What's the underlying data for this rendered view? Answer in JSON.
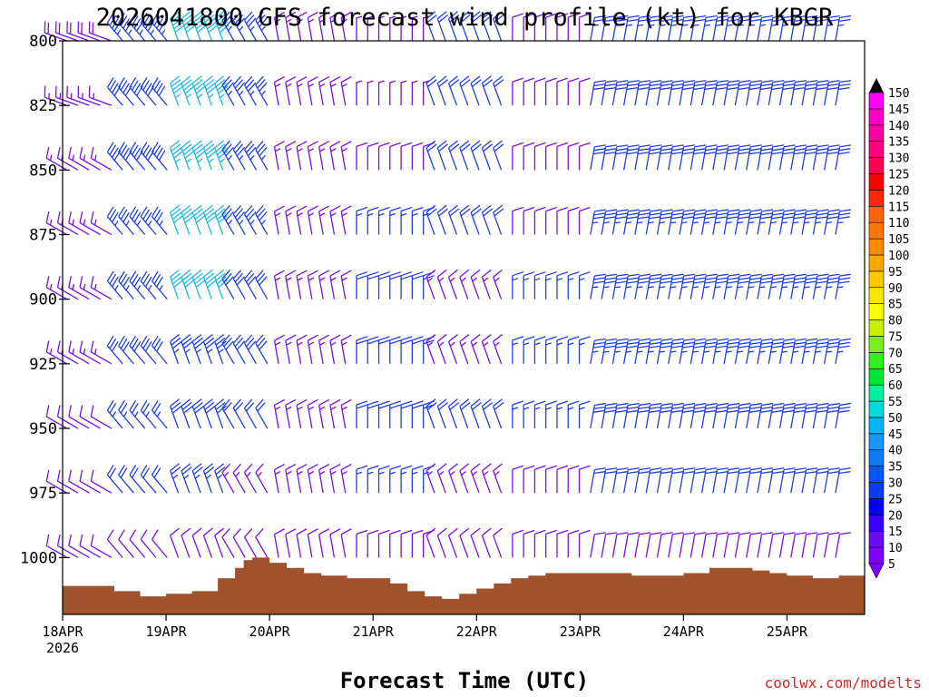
{
  "chart_data": {
    "type": "wind_barb_time_height",
    "title": "2026041800 GFS forecast wind profile (kt) for KBGR",
    "xlabel": "Forecast Time (UTC)",
    "ylabel": "",
    "credit": "coolwx.com/modelts",
    "y_ticks": [
      800,
      825,
      850,
      875,
      900,
      925,
      950,
      975,
      1000
    ],
    "ylim": [
      800,
      1022
    ],
    "x_ticks": [
      {
        "label": "18APR",
        "sublabel": "2026",
        "hour": 0
      },
      {
        "label": "19APR",
        "sublabel": "",
        "hour": 24
      },
      {
        "label": "20APR",
        "sublabel": "",
        "hour": 48
      },
      {
        "label": "21APR",
        "sublabel": "",
        "hour": 72
      },
      {
        "label": "22APR",
        "sublabel": "",
        "hour": 96
      },
      {
        "label": "23APR",
        "sublabel": "",
        "hour": 120
      },
      {
        "label": "24APR",
        "sublabel": "",
        "hour": 144
      },
      {
        "label": "25APR",
        "sublabel": "",
        "hour": 168
      }
    ],
    "xlim_hours": [
      0,
      186
    ],
    "colorbar": {
      "levels": [
        5,
        10,
        15,
        20,
        25,
        30,
        35,
        40,
        45,
        50,
        55,
        60,
        65,
        70,
        75,
        80,
        85,
        90,
        95,
        100,
        105,
        110,
        115,
        120,
        125,
        130,
        135,
        140,
        145,
        150
      ],
      "colors": [
        "#7f00ff",
        "#6a0df5",
        "#3a00ff",
        "#0000ff",
        "#0a3cf0",
        "#0055ff",
        "#0a7aff",
        "#1a96ff",
        "#00b4ff",
        "#00dcdc",
        "#00f0a0",
        "#00e632",
        "#32f01e",
        "#78f01e",
        "#c8f000",
        "#ffff00",
        "#ffe600",
        "#ffc800",
        "#ffa500",
        "#ff8c00",
        "#ff7800",
        "#ff6400",
        "#ff2800",
        "#ff0000",
        "#ff0050",
        "#ff0080",
        "#ff00a0",
        "#ff00c8",
        "#ff00ff",
        "#ff00ff"
      ]
    },
    "surface_pressure": {
      "hours": [
        0,
        12,
        18,
        24,
        30,
        36,
        40,
        42,
        44,
        46,
        48,
        52,
        56,
        60,
        66,
        72,
        76,
        80,
        84,
        88,
        92,
        96,
        100,
        104,
        108,
        112,
        116,
        120,
        126,
        132,
        138,
        144,
        150,
        156,
        160,
        164,
        168,
        174,
        180,
        186
      ],
      "hpa": [
        1011,
        1013,
        1015,
        1014,
        1013,
        1008,
        1004,
        1001,
        1000,
        1000,
        1002,
        1004,
        1006,
        1007,
        1008,
        1008,
        1010,
        1013,
        1015,
        1016,
        1014,
        1012,
        1010,
        1008,
        1007,
        1006,
        1006,
        1006,
        1006,
        1007,
        1007,
        1006,
        1004,
        1004,
        1005,
        1006,
        1007,
        1008,
        1007,
        1008
      ]
    },
    "wind_rows": [
      {
        "p": 800,
        "segments": [
          [
            0,
            12,
            20,
            -160,
            "purple"
          ],
          [
            12,
            26,
            45,
            -130,
            "blue"
          ],
          [
            26,
            38,
            50,
            -110,
            "cyan"
          ],
          [
            38,
            50,
            35,
            -120,
            "blue"
          ],
          [
            50,
            66,
            15,
            -100,
            "purple"
          ],
          [
            66,
            86,
            8,
            -90,
            "purple"
          ],
          [
            86,
            104,
            20,
            -110,
            "blue"
          ],
          [
            104,
            120,
            10,
            -90,
            "purple"
          ],
          [
            120,
            186,
            25,
            -80,
            "blue"
          ]
        ]
      },
      {
        "p": 825,
        "segments": [
          [
            0,
            12,
            15,
            -160,
            "purple"
          ],
          [
            12,
            26,
            40,
            -130,
            "blue"
          ],
          [
            26,
            38,
            45,
            -110,
            "cyan"
          ],
          [
            38,
            50,
            35,
            -120,
            "blue"
          ],
          [
            50,
            66,
            15,
            -100,
            "purple"
          ],
          [
            66,
            86,
            8,
            -90,
            "purple"
          ],
          [
            86,
            104,
            20,
            -110,
            "blue"
          ],
          [
            104,
            120,
            10,
            -90,
            "purple"
          ],
          [
            120,
            186,
            30,
            -80,
            "blue"
          ]
        ]
      },
      {
        "p": 850,
        "segments": [
          [
            0,
            12,
            15,
            -150,
            "purple"
          ],
          [
            12,
            26,
            40,
            -130,
            "blue"
          ],
          [
            26,
            38,
            45,
            -110,
            "cyan"
          ],
          [
            38,
            50,
            35,
            -120,
            "blue"
          ],
          [
            50,
            66,
            15,
            -100,
            "purple"
          ],
          [
            66,
            86,
            10,
            -90,
            "purple"
          ],
          [
            86,
            104,
            20,
            -110,
            "blue"
          ],
          [
            104,
            120,
            10,
            -90,
            "purple"
          ],
          [
            120,
            186,
            30,
            -80,
            "blue"
          ]
        ]
      },
      {
        "p": 875,
        "segments": [
          [
            0,
            12,
            15,
            -150,
            "purple"
          ],
          [
            12,
            26,
            35,
            -130,
            "blue"
          ],
          [
            26,
            38,
            40,
            -110,
            "cyan"
          ],
          [
            38,
            50,
            35,
            -120,
            "blue"
          ],
          [
            50,
            66,
            15,
            -100,
            "purple"
          ],
          [
            66,
            86,
            15,
            -90,
            "blue"
          ],
          [
            86,
            104,
            20,
            -110,
            "blue"
          ],
          [
            104,
            120,
            10,
            -90,
            "purple"
          ],
          [
            120,
            186,
            35,
            -80,
            "blue"
          ]
        ]
      },
      {
        "p": 900,
        "segments": [
          [
            0,
            12,
            15,
            -150,
            "purple"
          ],
          [
            12,
            26,
            35,
            -130,
            "blue"
          ],
          [
            26,
            38,
            40,
            -110,
            "cyan"
          ],
          [
            38,
            50,
            30,
            -120,
            "blue"
          ],
          [
            50,
            66,
            15,
            -100,
            "purple"
          ],
          [
            66,
            86,
            20,
            -90,
            "blue"
          ],
          [
            86,
            104,
            15,
            -110,
            "purple"
          ],
          [
            104,
            120,
            15,
            -90,
            "blue"
          ],
          [
            120,
            186,
            35,
            -80,
            "blue"
          ]
        ]
      },
      {
        "p": 925,
        "segments": [
          [
            0,
            12,
            15,
            -150,
            "purple"
          ],
          [
            12,
            26,
            30,
            -130,
            "blue"
          ],
          [
            26,
            38,
            35,
            -110,
            "blue"
          ],
          [
            38,
            50,
            30,
            -120,
            "blue"
          ],
          [
            50,
            66,
            15,
            -100,
            "purple"
          ],
          [
            66,
            86,
            20,
            -90,
            "blue"
          ],
          [
            86,
            104,
            15,
            -110,
            "purple"
          ],
          [
            104,
            120,
            15,
            -90,
            "blue"
          ],
          [
            120,
            186,
            35,
            -80,
            "blue"
          ]
        ]
      },
      {
        "p": 950,
        "segments": [
          [
            0,
            12,
            10,
            -150,
            "purple"
          ],
          [
            12,
            26,
            25,
            -130,
            "blue"
          ],
          [
            26,
            38,
            30,
            -110,
            "blue"
          ],
          [
            38,
            50,
            20,
            -120,
            "blue"
          ],
          [
            50,
            66,
            15,
            -100,
            "purple"
          ],
          [
            66,
            86,
            20,
            -90,
            "blue"
          ],
          [
            86,
            104,
            20,
            -110,
            "blue"
          ],
          [
            104,
            120,
            15,
            -90,
            "blue"
          ],
          [
            120,
            186,
            30,
            -80,
            "blue"
          ]
        ]
      },
      {
        "p": 975,
        "segments": [
          [
            0,
            12,
            10,
            -150,
            "purple"
          ],
          [
            12,
            26,
            20,
            -130,
            "blue"
          ],
          [
            26,
            38,
            25,
            -110,
            "blue"
          ],
          [
            38,
            50,
            15,
            -120,
            "purple"
          ],
          [
            50,
            66,
            15,
            -100,
            "purple"
          ],
          [
            66,
            86,
            15,
            -90,
            "blue"
          ],
          [
            86,
            104,
            15,
            -110,
            "purple"
          ],
          [
            104,
            120,
            10,
            -90,
            "purple"
          ],
          [
            120,
            186,
            20,
            -80,
            "blue"
          ]
        ]
      },
      {
        "p": 1000,
        "segments": [
          [
            0,
            12,
            10,
            -150,
            "purple"
          ],
          [
            12,
            26,
            10,
            -130,
            "purple"
          ],
          [
            26,
            38,
            10,
            -110,
            "purple"
          ],
          [
            38,
            50,
            10,
            -120,
            "purple"
          ],
          [
            50,
            66,
            10,
            -100,
            "purple"
          ],
          [
            66,
            86,
            10,
            -90,
            "purple"
          ],
          [
            86,
            104,
            10,
            -110,
            "purple"
          ],
          [
            104,
            120,
            10,
            -90,
            "purple"
          ],
          [
            120,
            186,
            10,
            -80,
            "purple"
          ]
        ]
      }
    ]
  }
}
